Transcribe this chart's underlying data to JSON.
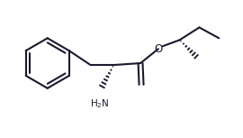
{
  "background_color": "#ffffff",
  "line_color": "#1a1a2e",
  "line_width": 1.5,
  "figsize": [
    2.7,
    1.53
  ],
  "dpi": 100,
  "nh2_label": "H₂N"
}
